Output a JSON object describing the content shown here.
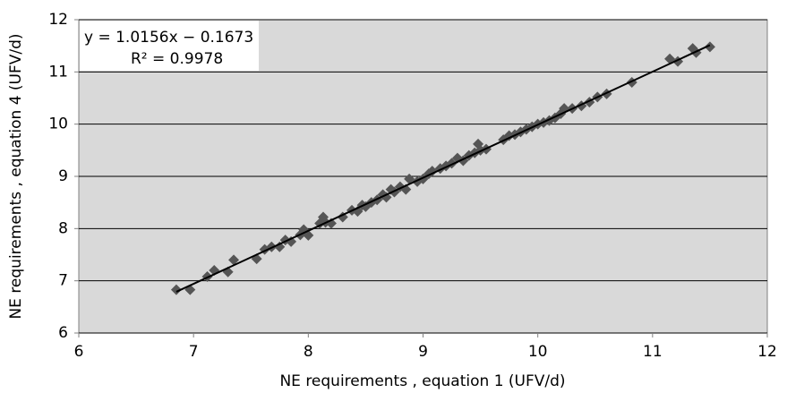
{
  "chart_data": {
    "type": "scatter",
    "x_label": "NE requirements , equation 1 (UFV/d)",
    "y_label": "NE requirements , equation 4 (UFV/d)",
    "annotations": [
      "y = 1.0156x − 0.1673",
      "R² = 0.9978"
    ],
    "x": [
      6.85,
      6.97,
      7.12,
      7.18,
      7.3,
      7.35,
      7.55,
      7.62,
      7.68,
      7.75,
      7.8,
      7.85,
      7.93,
      7.96,
      8.0,
      8.1,
      8.13,
      8.15,
      8.2,
      8.3,
      8.38,
      8.43,
      8.47,
      8.5,
      8.55,
      8.6,
      8.65,
      8.68,
      8.72,
      8.75,
      8.8,
      8.85,
      8.88,
      8.95,
      9.0,
      9.05,
      9.08,
      9.15,
      9.2,
      9.25,
      9.3,
      9.35,
      9.4,
      9.45,
      9.48,
      9.5,
      9.55,
      9.7,
      9.75,
      9.8,
      9.85,
      9.9,
      9.95,
      10.0,
      10.05,
      10.1,
      10.15,
      10.2,
      10.23,
      10.3,
      10.38,
      10.45,
      10.52,
      10.6,
      10.82,
      11.15,
      11.22,
      11.35,
      11.38,
      11.5
    ],
    "values": [
      6.83,
      6.83,
      7.08,
      7.2,
      7.17,
      7.4,
      7.42,
      7.6,
      7.65,
      7.65,
      7.78,
      7.75,
      7.88,
      7.98,
      7.87,
      8.1,
      8.22,
      8.12,
      8.1,
      8.22,
      8.35,
      8.33,
      8.45,
      8.42,
      8.5,
      8.55,
      8.65,
      8.6,
      8.75,
      8.7,
      8.8,
      8.75,
      8.95,
      8.9,
      8.95,
      9.05,
      9.1,
      9.15,
      9.2,
      9.25,
      9.35,
      9.3,
      9.4,
      9.45,
      9.62,
      9.5,
      9.52,
      9.7,
      9.78,
      9.8,
      9.85,
      9.9,
      9.95,
      10.0,
      10.03,
      10.07,
      10.12,
      10.2,
      10.3,
      10.3,
      10.35,
      10.42,
      10.52,
      10.58,
      10.8,
      11.25,
      11.2,
      11.45,
      11.37,
      11.48
    ],
    "color": "#555555",
    "trendline": {
      "slope": 1.0156,
      "intercept": -0.1673,
      "x": [
        6.85,
        11.5
      ],
      "color": "#000000"
    },
    "xlim": [
      6,
      12
    ],
    "ylim": [
      6,
      12
    ],
    "xticks": [
      6,
      7,
      8,
      9,
      10,
      11,
      12
    ],
    "yticks": [
      6,
      7,
      8,
      9,
      10,
      11,
      12
    ],
    "grid": true
  }
}
